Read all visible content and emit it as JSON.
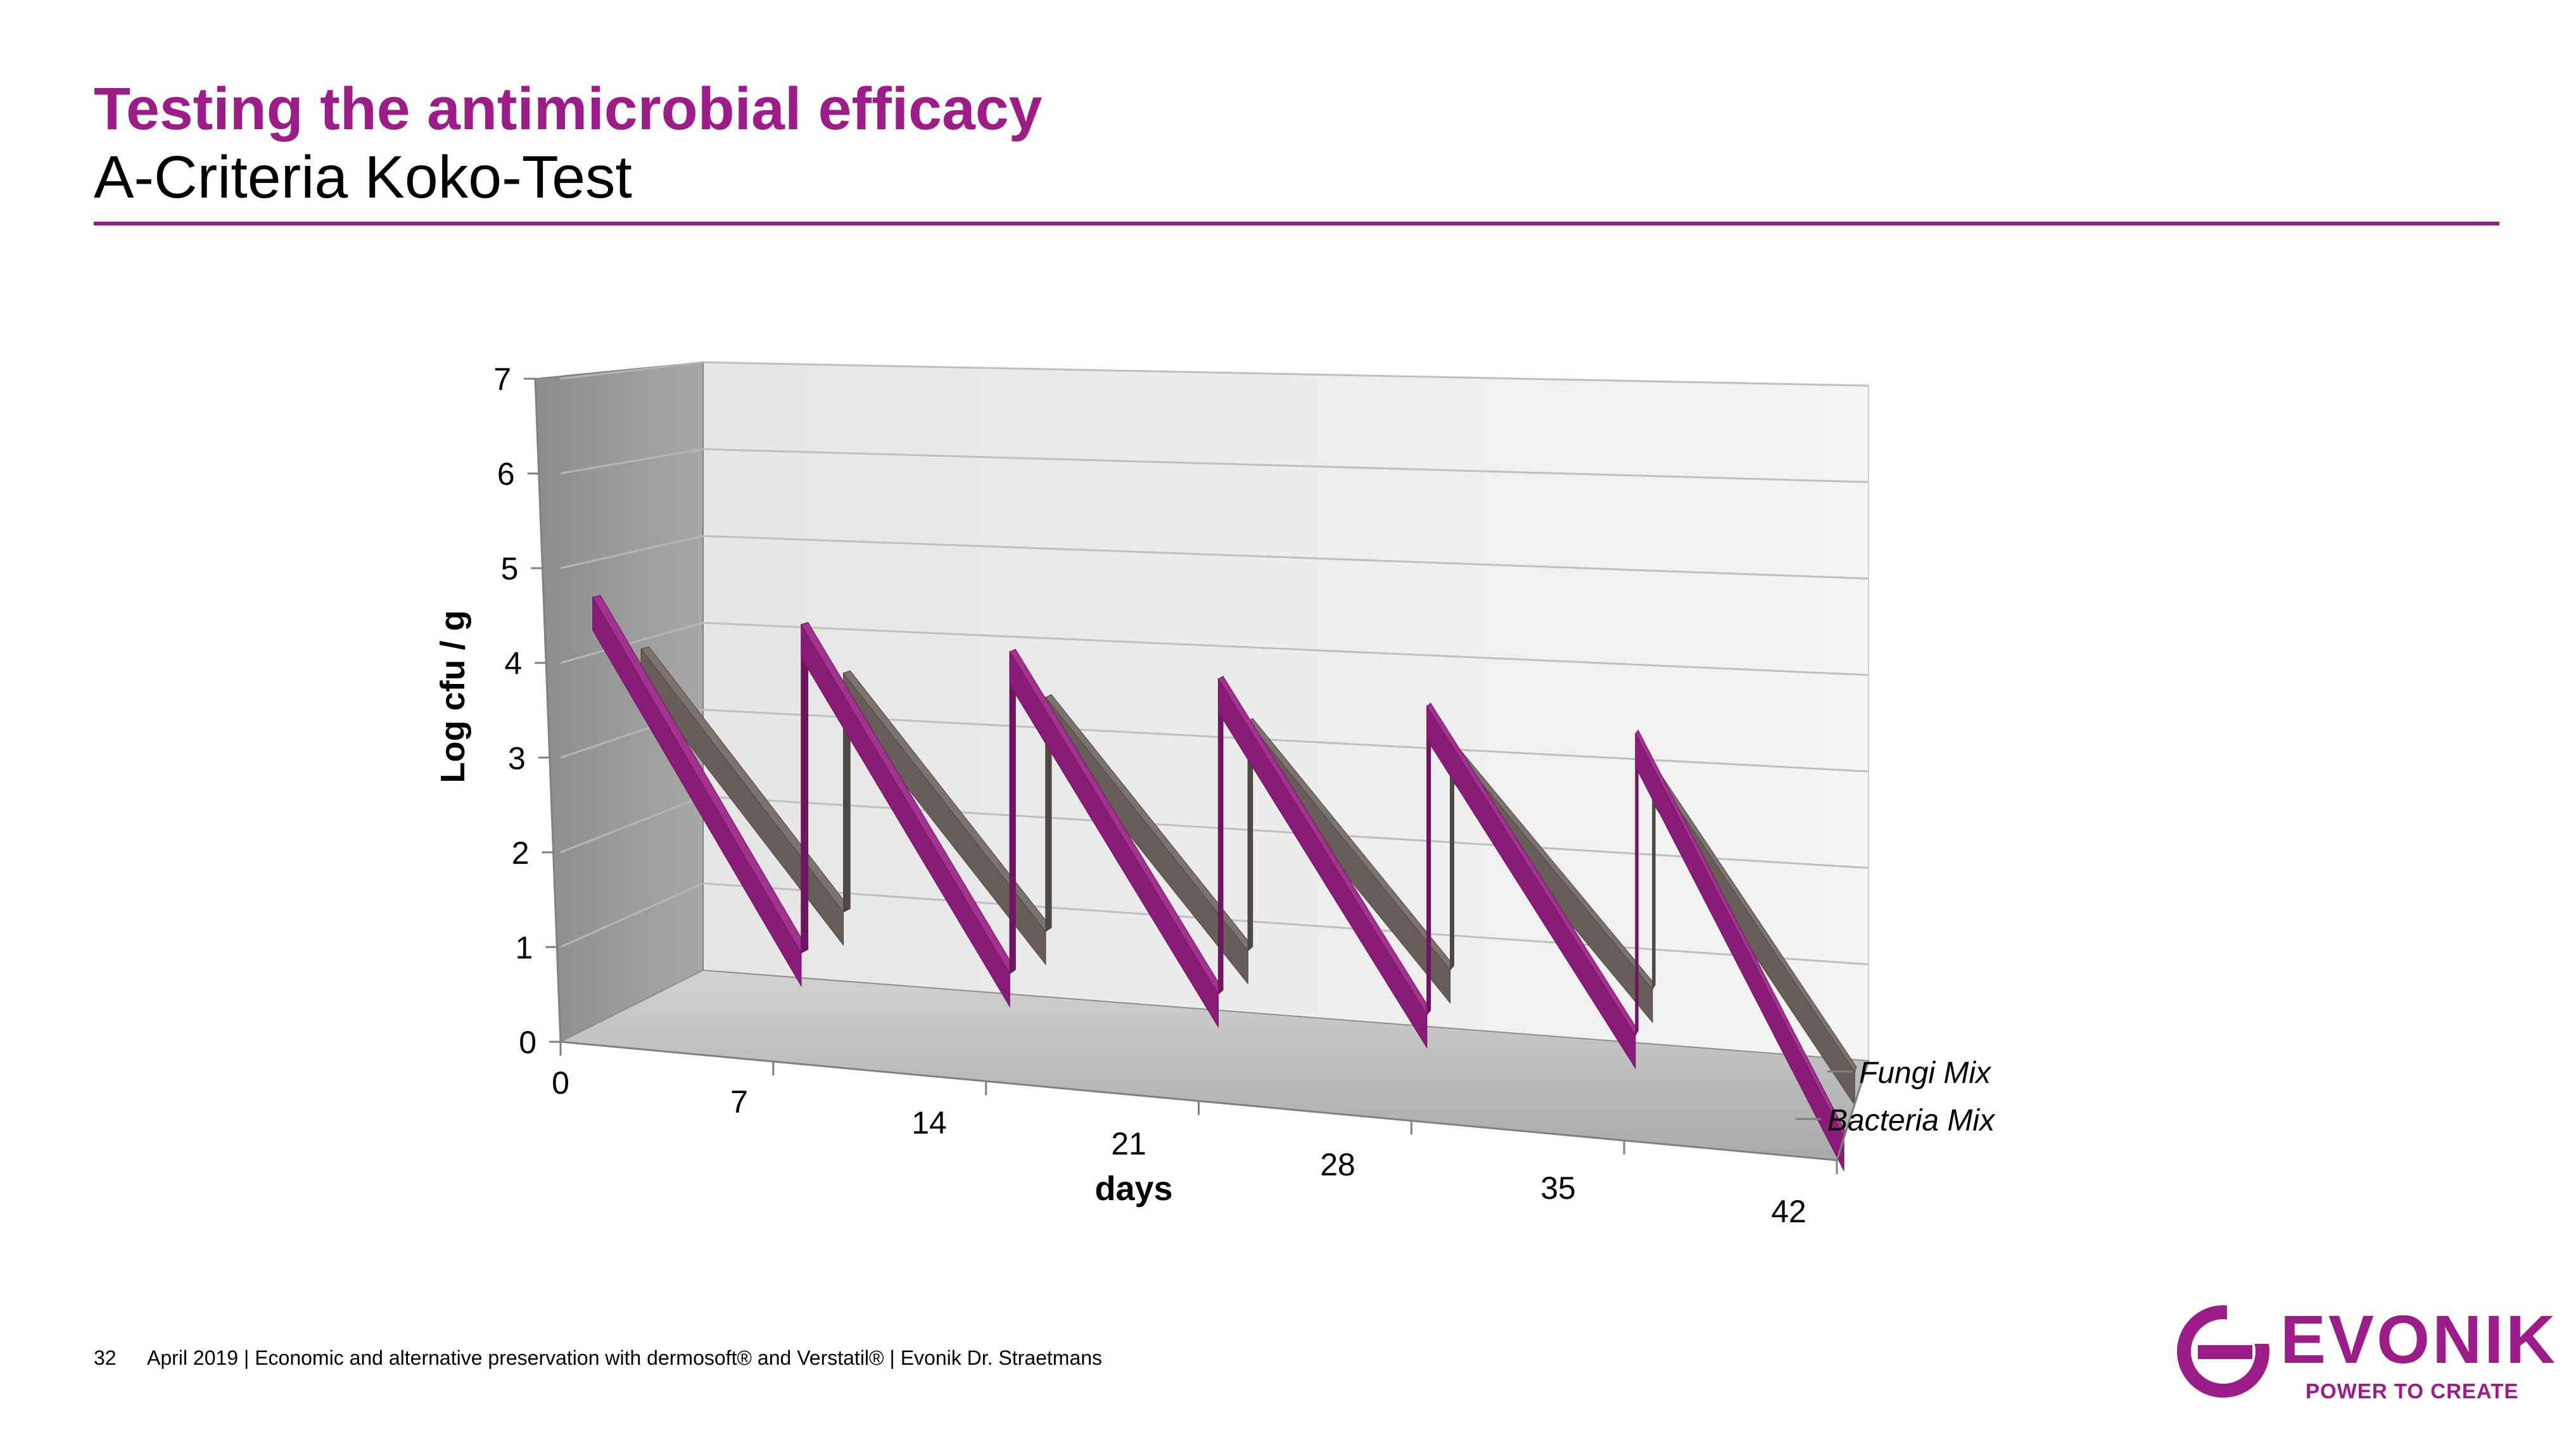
{
  "header": {
    "title": "Testing the antimicrobial efficacy",
    "subtitle": "A-Criteria Koko-Test"
  },
  "chart_data": {
    "type": "line",
    "style": "3d-ribbon",
    "x": [
      0,
      7,
      7,
      14,
      14,
      21,
      21,
      28,
      28,
      35,
      35,
      42
    ],
    "x_ticks": [
      "0",
      "7",
      "14",
      "21",
      "28",
      "35",
      "42"
    ],
    "xlabel": "days",
    "ylabel": "Log cfu / g",
    "y_ticks": [
      "0",
      "1",
      "2",
      "3",
      "4",
      "5",
      "6",
      "7"
    ],
    "ylim": [
      0,
      7
    ],
    "grid": true,
    "series": [
      {
        "name": "Bacteria Mix",
        "color": "#8A1B78",
        "values": [
          4.6,
          1.0,
          4.6,
          1.0,
          4.6,
          1.0,
          4.6,
          1.0,
          4.6,
          1.0,
          4.6,
          0.0
        ]
      },
      {
        "name": "Fungi Mix",
        "color": "#675E58",
        "values": [
          3.9,
          1.2,
          3.9,
          1.2,
          3.9,
          1.2,
          3.9,
          1.2,
          3.9,
          1.2,
          3.9,
          0.4
        ]
      }
    ],
    "depth_labels": [
      "Fungi Mix",
      "Bacteria Mix"
    ]
  },
  "footer": {
    "page": "32",
    "text": "April 2019  |  Economic and alternative preservation with dermosoft® and Verstatil®  |  Evonik Dr. Straetmans"
  },
  "logo": {
    "word": "EVONIK",
    "slogan": "POWER TO CREATE",
    "color": "#9C1D87"
  }
}
